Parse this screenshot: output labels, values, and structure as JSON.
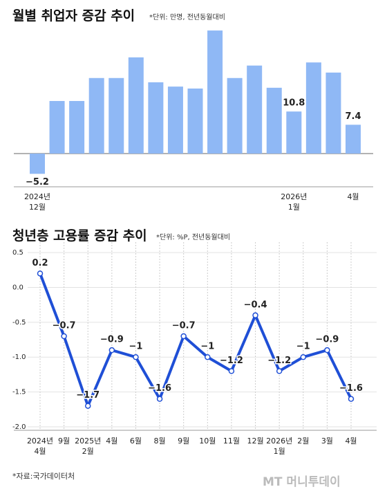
{
  "chart_data": [
    {
      "type": "bar",
      "title": "월별 취업자 증감 추이",
      "subtitle": "*단위: 만명, 전년동월대비",
      "categories": [
        "2024년\n12월",
        null,
        null,
        null,
        null,
        null,
        null,
        null,
        null,
        null,
        null,
        null,
        null,
        "2026년\n1월",
        null,
        null,
        "4월"
      ],
      "values": [
        -5.2,
        13.5,
        13.5,
        19.4,
        19.4,
        24.7,
        18.3,
        17.2,
        16.7,
        31.6,
        19.4,
        22.6,
        16.9,
        10.8,
        23.4,
        20.8,
        7.4
      ],
      "value_labels": [
        "−5.2",
        null,
        null,
        null,
        null,
        null,
        null,
        null,
        null,
        null,
        null,
        null,
        null,
        "10.8",
        null,
        null,
        "7.4"
      ],
      "color": "#8fb8f5"
    },
    {
      "type": "line",
      "title": "청년층 고용률 증감 추이",
      "subtitle": "*단위: %P, 전년동월대비",
      "categories": [
        "2024년\n4월",
        "9월",
        "2025년\n2월",
        "4월",
        "6월",
        "8월",
        "9월",
        "10월",
        "11월",
        "12월",
        "2026년\n1월",
        "2월",
        "3월",
        "4월"
      ],
      "values": [
        0.2,
        -0.7,
        -1.7,
        -0.9,
        -1,
        -1.6,
        -0.7,
        -1,
        -1.2,
        -0.4,
        -1.2,
        -1,
        -0.9,
        -1.6
      ],
      "value_labels": [
        "0.2",
        "−0.7",
        "−1.7",
        "−0.9",
        "−1",
        "−1.6",
        "−0.7",
        "−1",
        "−1.2",
        "−0.4",
        "−1.2",
        "−1",
        "−0.9",
        "−1.6"
      ],
      "color": "#1f4fd6",
      "ylim": [
        -2.05,
        0.65
      ],
      "yticks": [
        0.5,
        {
          "value": 0,
          "label": "0.0"
        },
        -0.5,
        {
          "value": -1,
          "label": "-1.0"
        },
        -1.5,
        {
          "value": -2,
          "label": "-2.0"
        }
      ],
      "grid": true
    }
  ],
  "footer": {
    "source": "*자료:국가데이터처",
    "logo": "MT 머니투데이"
  }
}
